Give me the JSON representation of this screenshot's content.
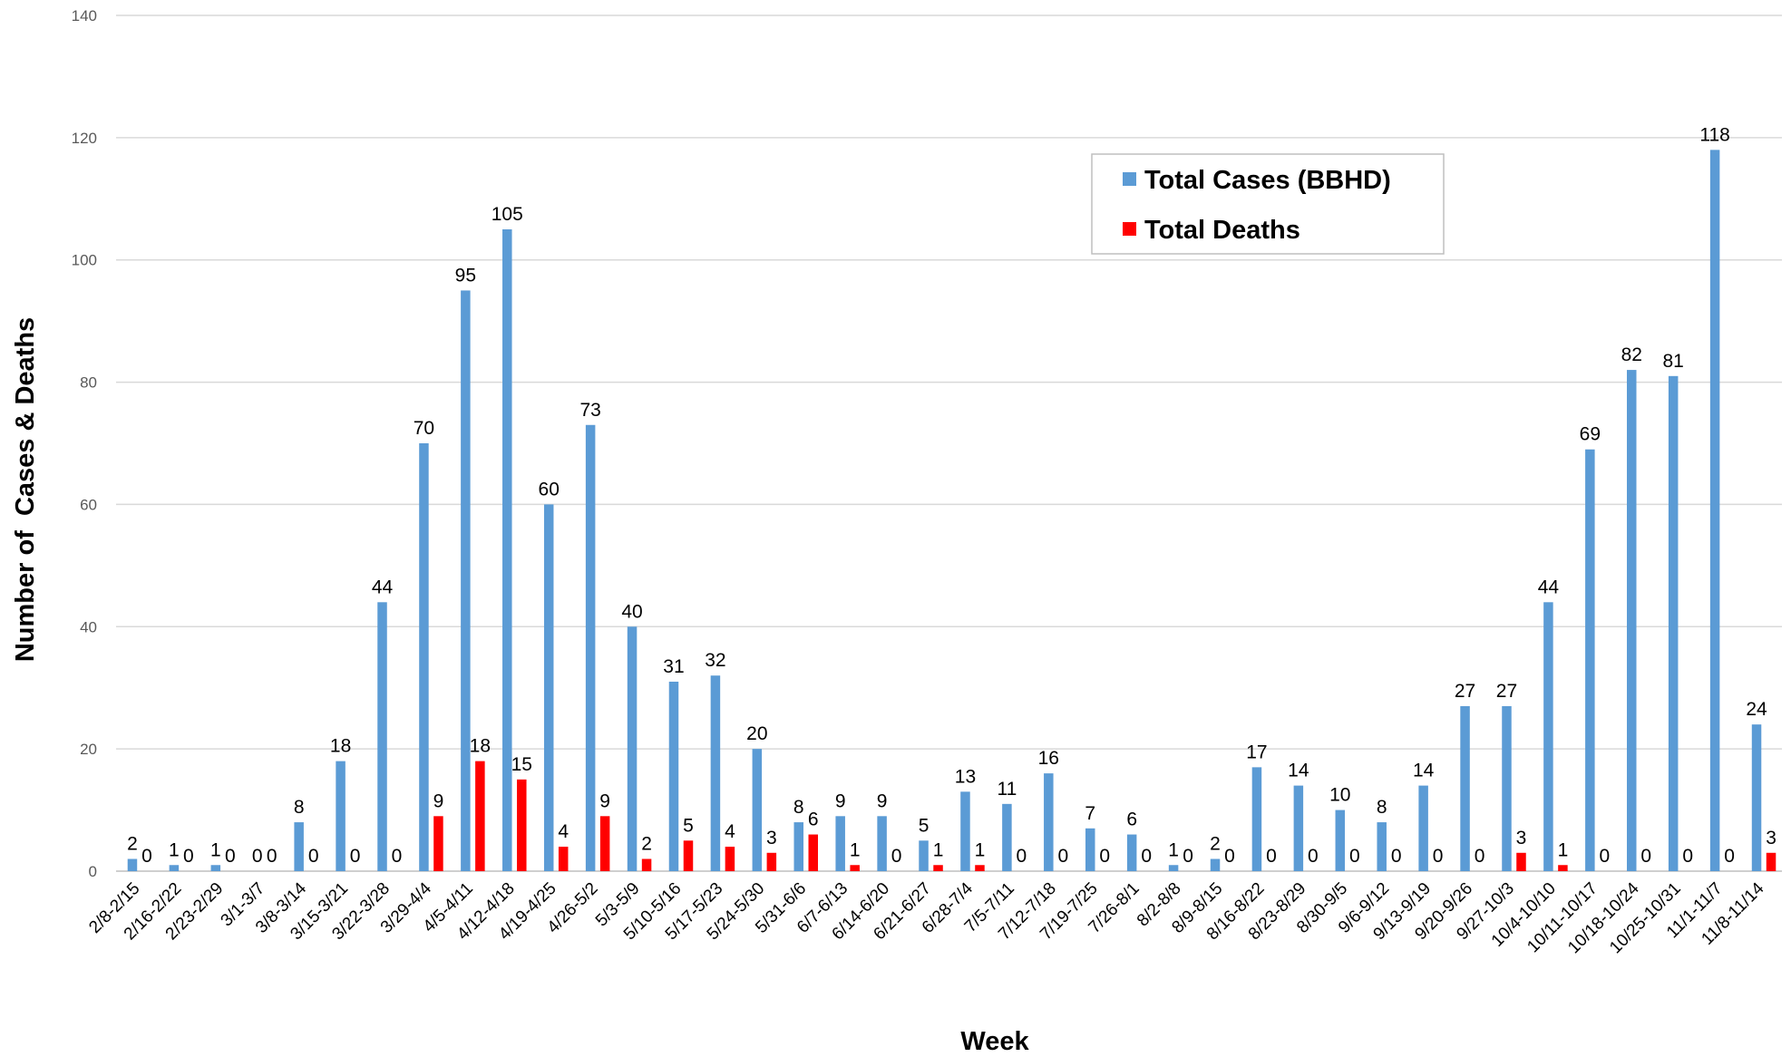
{
  "chart_data": {
    "type": "bar",
    "xlabel": "Week",
    "ylabel": "Number of  Cases & Deaths",
    "ylim": [
      0,
      140
    ],
    "yticks": [
      0,
      20,
      40,
      60,
      80,
      100,
      120,
      140
    ],
    "grid": true,
    "legend_position": "top-right",
    "categories": [
      "2/8-2/15",
      "2/16-2/22",
      "2/23-2/29",
      "3/1-3/7",
      "3/8-3/14",
      "3/15-3/21",
      "3/22-3/28",
      "3/29-4/4",
      "4/5-4/11",
      "4/12-4/18",
      "4/19-4/25",
      "4/26-5/2",
      "5/3-5/9",
      "5/10-5/16",
      "5/17-5/23",
      "5/24-5/30",
      "5/31-6/6",
      "6/7-6/13",
      "6/14-6/20",
      "6/21-6/27",
      "6/28-7/4",
      "7/5-7/11",
      "7/12-7/18",
      "7/19-7/25",
      "7/26-8/1",
      "8/2-8/8",
      "8/9-8/15",
      "8/16-8/22",
      "8/23-8/29",
      "8/30-9/5",
      "9/6-9/12",
      "9/13-9/19",
      "9/20-9/26",
      "9/27-10/3",
      "10/4-10/10",
      "10/11-10/17",
      "10/18-10/24",
      "10/25-10/31",
      "11/1-11/7",
      "11/8-11/14"
    ],
    "series": [
      {
        "name": "Total Cases (BBHD)",
        "color": "#5B9BD5",
        "values": [
          2,
          1,
          1,
          0,
          8,
          18,
          44,
          70,
          95,
          105,
          60,
          73,
          40,
          31,
          32,
          20,
          8,
          9,
          9,
          5,
          13,
          11,
          16,
          7,
          6,
          1,
          2,
          17,
          14,
          10,
          8,
          14,
          27,
          27,
          44,
          69,
          82,
          81,
          118,
          24
        ]
      },
      {
        "name": "Total Deaths",
        "color": "#FF0000",
        "values": [
          0,
          0,
          0,
          0,
          0,
          0,
          0,
          9,
          18,
          15,
          4,
          9,
          2,
          5,
          4,
          3,
          6,
          1,
          0,
          1,
          1,
          0,
          0,
          0,
          0,
          0,
          0,
          0,
          0,
          0,
          0,
          0,
          0,
          3,
          1,
          0,
          0,
          0,
          0,
          3
        ]
      }
    ]
  }
}
